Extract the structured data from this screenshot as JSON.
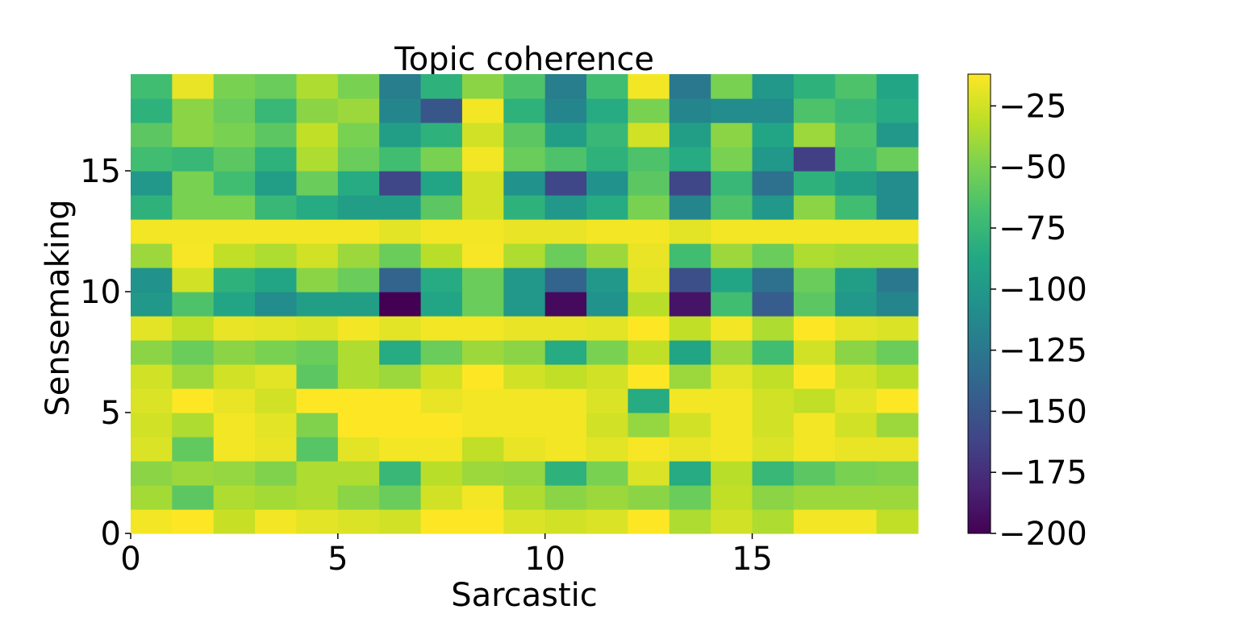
{
  "chart_data": {
    "type": "heatmap",
    "title": "Topic coherence",
    "xlabel": "Sarcastic",
    "ylabel": "Sensemaking",
    "xlim": [
      0,
      19
    ],
    "ylim": [
      0,
      19
    ],
    "xticks": [
      0,
      5,
      10,
      15
    ],
    "yticks": [
      0,
      5,
      10,
      15
    ],
    "colormap": "viridis",
    "colorbar": {
      "vmin": -200,
      "vmax": -12,
      "ticks": [
        -25,
        -50,
        -75,
        -100,
        -125,
        -150,
        -175,
        -200
      ]
    },
    "grid": false,
    "rows_from_bottom": [
      [
        -15,
        -12,
        -28,
        -15,
        -20,
        -22,
        -25,
        -12,
        -12,
        -22,
        -25,
        -22,
        -12,
        -35,
        -25,
        -35,
        -15,
        -15,
        -30
      ],
      [
        -38,
        -60,
        -35,
        -38,
        -35,
        -45,
        -55,
        -25,
        -15,
        -35,
        -45,
        -40,
        -45,
        -55,
        -30,
        -45,
        -40,
        -40,
        -40
      ],
      [
        -45,
        -40,
        -42,
        -48,
        -35,
        -35,
        -75,
        -32,
        -40,
        -42,
        -80,
        -50,
        -22,
        -85,
        -32,
        -75,
        -60,
        -50,
        -48
      ],
      [
        -22,
        -58,
        -15,
        -18,
        -62,
        -20,
        -15,
        -15,
        -30,
        -18,
        -15,
        -20,
        -14,
        -18,
        -15,
        -22,
        -15,
        -18,
        -18
      ],
      [
        -25,
        -35,
        -15,
        -20,
        -48,
        -12,
        -12,
        -12,
        -15,
        -15,
        -15,
        -25,
        -42,
        -25,
        -15,
        -25,
        -15,
        -25,
        -40
      ],
      [
        -22,
        -12,
        -18,
        -25,
        -12,
        -12,
        -12,
        -18,
        -15,
        -15,
        -15,
        -22,
        -85,
        -15,
        -15,
        -25,
        -30,
        -20,
        -12
      ],
      [
        -25,
        -40,
        -25,
        -20,
        -60,
        -35,
        -40,
        -25,
        -12,
        -25,
        -30,
        -25,
        -12,
        -40,
        -20,
        -30,
        -12,
        -25,
        -32
      ],
      [
        -45,
        -55,
        -45,
        -50,
        -55,
        -35,
        -85,
        -55,
        -40,
        -45,
        -85,
        -50,
        -30,
        -90,
        -40,
        -70,
        -25,
        -45,
        -55
      ],
      [
        -20,
        -30,
        -18,
        -20,
        -22,
        -15,
        -20,
        -15,
        -15,
        -18,
        -18,
        -20,
        -12,
        -30,
        -15,
        -35,
        -12,
        -20,
        -22
      ],
      [
        -100,
        -65,
        -90,
        -110,
        -95,
        -95,
        -200,
        -90,
        -55,
        -100,
        -195,
        -105,
        -32,
        -190,
        -70,
        -145,
        -60,
        -100,
        -115
      ],
      [
        -105,
        -25,
        -80,
        -90,
        -45,
        -55,
        -140,
        -85,
        -55,
        -100,
        -140,
        -100,
        -20,
        -155,
        -90,
        -130,
        -55,
        -95,
        -125
      ],
      [
        -40,
        -14,
        -30,
        -35,
        -25,
        -40,
        -55,
        -32,
        -14,
        -35,
        -55,
        -40,
        -18,
        -70,
        -40,
        -55,
        -35,
        -38,
        -38
      ],
      [
        -15,
        -15,
        -15,
        -15,
        -15,
        -15,
        -20,
        -15,
        -15,
        -18,
        -18,
        -15,
        -15,
        -20,
        -15,
        -15,
        -15,
        -15,
        -15
      ],
      [
        -80,
        -50,
        -50,
        -75,
        -85,
        -95,
        -95,
        -60,
        -25,
        -80,
        -100,
        -85,
        -50,
        -115,
        -65,
        -100,
        -45,
        -70,
        -110
      ],
      [
        -100,
        -50,
        -70,
        -95,
        -55,
        -85,
        -160,
        -90,
        -25,
        -105,
        -160,
        -105,
        -60,
        -160,
        -75,
        -130,
        -80,
        -95,
        -110
      ],
      [
        -70,
        -75,
        -60,
        -80,
        -35,
        -55,
        -70,
        -50,
        -15,
        -55,
        -65,
        -80,
        -65,
        -85,
        -50,
        -100,
        -165,
        -70,
        -55
      ],
      [
        -60,
        -45,
        -50,
        -60,
        -30,
        -50,
        -95,
        -80,
        -25,
        -60,
        -95,
        -75,
        -25,
        -95,
        -45,
        -90,
        -40,
        -65,
        -100
      ],
      [
        -80,
        -45,
        -55,
        -75,
        -45,
        -40,
        -115,
        -150,
        -15,
        -80,
        -115,
        -85,
        -50,
        -115,
        -110,
        -110,
        -65,
        -75,
        -85
      ],
      [
        -70,
        -18,
        -50,
        -55,
        -35,
        -50,
        -120,
        -80,
        -45,
        -65,
        -120,
        -70,
        -15,
        -125,
        -50,
        -100,
        -80,
        -65,
        -90
      ]
    ]
  }
}
